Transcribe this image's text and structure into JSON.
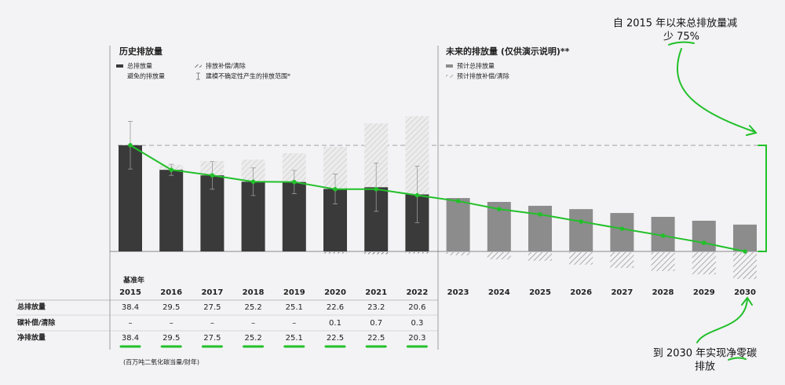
{
  "chart_data": {
    "type": "bar",
    "history_title": "历史排放量",
    "future_title": "未来的排放量 (仅供演示说明)**",
    "base_year_label": "基准年",
    "unit_note": "(百万吨二氧化碳当量/财年)",
    "categories": [
      "2015",
      "2016",
      "2017",
      "2018",
      "2019",
      "2020",
      "2021",
      "2022",
      "2023",
      "2024",
      "2025",
      "2026",
      "2027",
      "2028",
      "2029",
      "2030"
    ],
    "history_count": 8,
    "series": [
      {
        "name": "总排放量",
        "role": "gross",
        "color": "#3a3a3a",
        "values": [
          38.4,
          29.5,
          27.5,
          25.2,
          25.1,
          22.6,
          23.2,
          20.6,
          null,
          null,
          null,
          null,
          null,
          null,
          null,
          null
        ],
        "errors": [
          8.6,
          2,
          5,
          5,
          4.2,
          5.4,
          8.7,
          10.2
        ]
      },
      {
        "name": "预计总排放量",
        "role": "gross",
        "color": "#8c8c8c",
        "values": [
          null,
          null,
          null,
          null,
          null,
          null,
          null,
          null,
          19.3,
          17.9,
          16.5,
          15.3,
          13.9,
          12.5,
          11.1,
          9.7
        ]
      },
      {
        "name": "避免的排放量",
        "role": "avoided",
        "color": "#d9d9d9",
        "values": [
          null,
          1.8,
          5.2,
          8.0,
          10.4,
          15.2,
          23.1,
          28.3,
          null,
          null,
          null,
          null,
          null,
          null,
          null,
          null
        ]
      },
      {
        "name": "排放补偿/清除",
        "role": "offset",
        "color": "#555555",
        "values": [
          null,
          null,
          null,
          null,
          null,
          0.1,
          0.7,
          0.3,
          null,
          null,
          null,
          null,
          null,
          null,
          null,
          null
        ],
        "value_labels": [
          "–",
          "–",
          "–",
          "–",
          "–",
          "0.1",
          "0.7",
          "0.3",
          null,
          null,
          null,
          null,
          null,
          null,
          null,
          null
        ]
      },
      {
        "name": "预计排放补偿/清除",
        "role": "offset",
        "color": "#999999",
        "values": [
          null,
          null,
          null,
          null,
          null,
          null,
          null,
          null,
          1.1,
          2.6,
          3.1,
          4.5,
          5.7,
          6.8,
          8.0,
          9.7
        ]
      },
      {
        "name": "净排放量",
        "role": "net",
        "color": "#22c02a",
        "values": [
          38.4,
          29.5,
          27.5,
          25.2,
          25.1,
          22.5,
          22.5,
          20.3,
          18.2,
          15.3,
          13.4,
          10.8,
          8.2,
          5.7,
          3.1,
          0
        ]
      }
    ],
    "error_name": "建模不确定性产生的排放范围*",
    "table_row_labels": [
      "总排放量",
      "碳补偿/清除",
      "净排放量"
    ],
    "annotation_top": [
      "自 2015 年以来总排放量减",
      "少 75%"
    ],
    "annotation_bottom": [
      "到 2030 年实现净零碳",
      "排放"
    ]
  }
}
